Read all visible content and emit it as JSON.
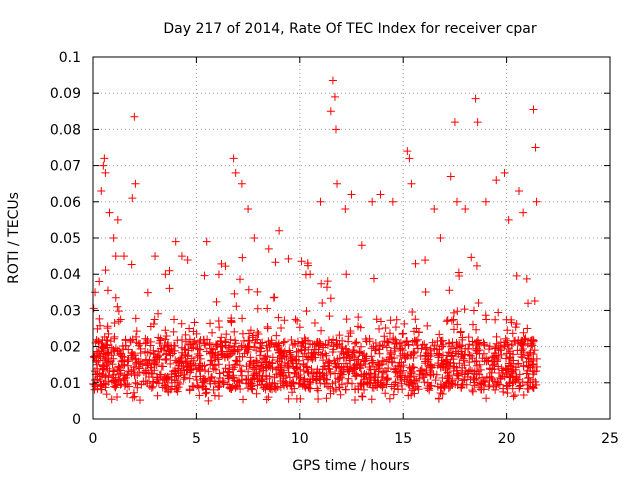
{
  "chart_data": {
    "type": "scatter",
    "title": "Day 217 of 2014, Rate Of TEC Index for receiver cpar",
    "xlabel": "GPS time / hours",
    "ylabel": "ROTI / TECUs",
    "xlim": [
      0,
      25
    ],
    "ylim": [
      0,
      0.1
    ],
    "xticks": [
      "0",
      "5",
      "10",
      "15",
      "20",
      "25"
    ],
    "yticks": [
      "0",
      "0.01",
      "0.02",
      "0.03",
      "0.04",
      "0.05",
      "0.06",
      "0.07",
      "0.08",
      "0.09",
      "0.1"
    ],
    "grid": true,
    "marker": "+",
    "color": "#ff0000",
    "series": [
      {
        "name": "ROTI",
        "x": [
          0.1,
          0.3,
          0.4,
          0.5,
          0.55,
          0.6,
          0.8,
          1.0,
          1.1,
          1.2,
          1.5,
          1.9,
          2.0,
          2.05,
          3.0,
          3.5,
          4.0,
          4.3,
          5.5,
          6.8,
          6.9,
          7.2,
          7.5,
          7.8,
          8.5,
          9.0,
          10.5,
          11.0,
          11.5,
          11.6,
          11.7,
          11.75,
          11.8,
          12.2,
          12.5,
          13.0,
          13.5,
          13.9,
          14.5,
          15.2,
          15.3,
          15.4,
          16.5,
          16.8,
          17.3,
          17.5,
          17.6,
          18.0,
          18.5,
          18.6,
          19.0,
          19.5,
          19.9,
          20.1,
          20.6,
          20.8,
          21.3,
          21.4,
          21.45
        ],
        "y": [
          0.035,
          0.038,
          0.063,
          0.07,
          0.072,
          0.068,
          0.057,
          0.05,
          0.045,
          0.055,
          0.045,
          0.061,
          0.0835,
          0.065,
          0.045,
          0.04,
          0.049,
          0.045,
          0.049,
          0.072,
          0.068,
          0.065,
          0.058,
          0.05,
          0.047,
          0.052,
          0.04,
          0.06,
          0.085,
          0.0935,
          0.089,
          0.08,
          0.065,
          0.058,
          0.062,
          0.048,
          0.06,
          0.062,
          0.06,
          0.074,
          0.072,
          0.065,
          0.058,
          0.05,
          0.067,
          0.082,
          0.06,
          0.058,
          0.0885,
          0.082,
          0.06,
          0.066,
          0.068,
          0.055,
          0.063,
          0.057,
          0.0855,
          0.075,
          0.06
        ]
      }
    ],
    "background": {
      "x_range": [
        0,
        21.5
      ],
      "typical_range": [
        0.005,
        0.028
      ],
      "description": "dense band of + markers"
    }
  }
}
